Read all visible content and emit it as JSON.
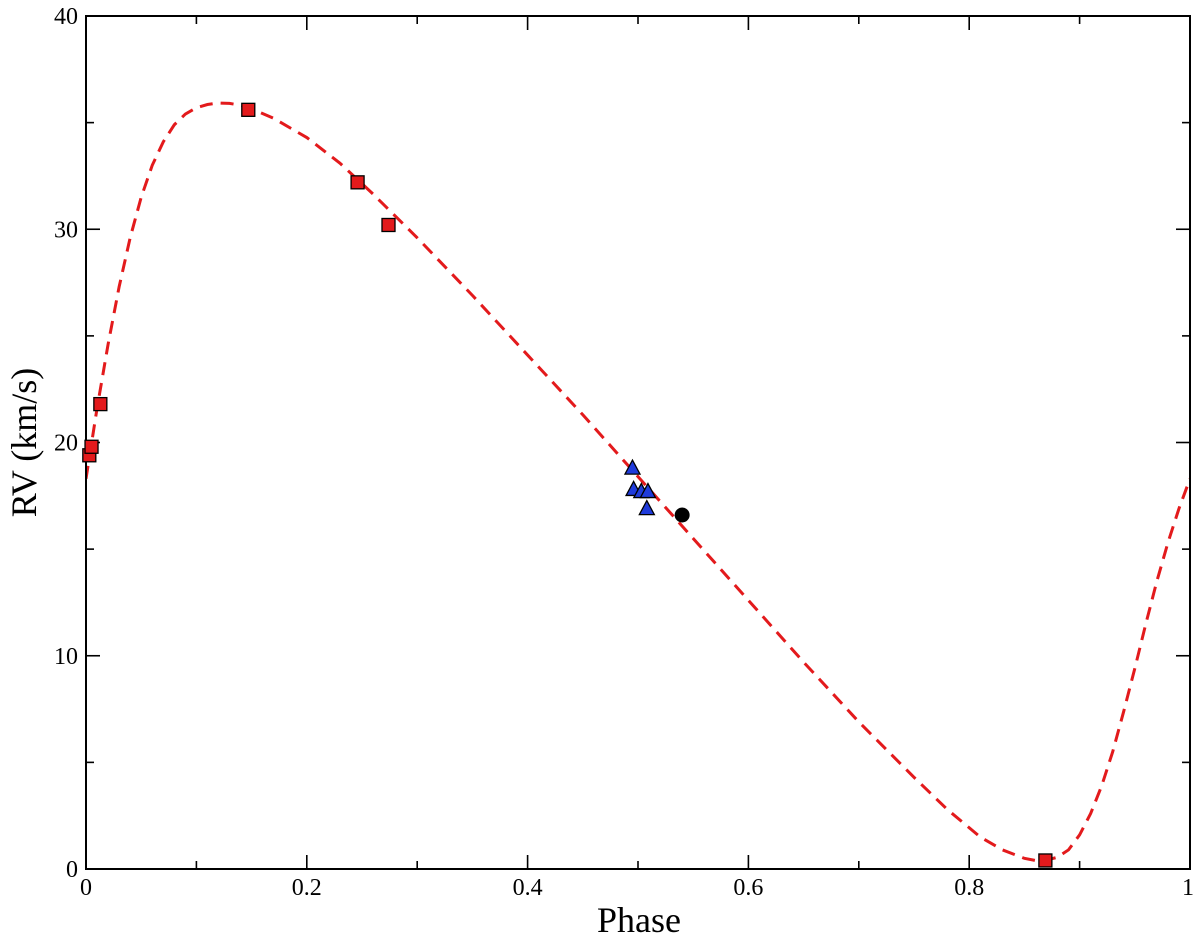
{
  "chart_data": {
    "type": "scatter",
    "title": "",
    "xlabel": "Phase",
    "ylabel": "RV (km/s)",
    "xlim": [
      0,
      1
    ],
    "ylim": [
      0,
      40
    ],
    "x_major_ticks": [
      0,
      0.2,
      0.4,
      0.6,
      0.8,
      1
    ],
    "x_tick_labels": [
      "0",
      "0.2",
      "0.4",
      "0.6",
      "0.8",
      "1"
    ],
    "x_minor_ticks": [
      0.1,
      0.3,
      0.5,
      0.7,
      0.9
    ],
    "y_major_ticks": [
      0,
      10,
      20,
      30,
      40
    ],
    "y_tick_labels": [
      "0",
      "10",
      "20",
      "30",
      "40"
    ],
    "y_minor_ticks": [
      5,
      15,
      25,
      35
    ],
    "grid": false,
    "legend": "none",
    "fit_curve": {
      "style": "dashed",
      "color": "#e31a1c",
      "points": [
        [
          0.0,
          18.3
        ],
        [
          0.01,
          21.6
        ],
        [
          0.02,
          24.6
        ],
        [
          0.03,
          27.3
        ],
        [
          0.04,
          29.6
        ],
        [
          0.05,
          31.5
        ],
        [
          0.06,
          33.0
        ],
        [
          0.07,
          34.1
        ],
        [
          0.08,
          34.9
        ],
        [
          0.09,
          35.4
        ],
        [
          0.1,
          35.7
        ],
        [
          0.11,
          35.85
        ],
        [
          0.12,
          35.92
        ],
        [
          0.13,
          35.9
        ],
        [
          0.14,
          35.82
        ],
        [
          0.15,
          35.65
        ],
        [
          0.17,
          35.2
        ],
        [
          0.2,
          34.3
        ],
        [
          0.23,
          33.1
        ],
        [
          0.26,
          31.65
        ],
        [
          0.3,
          29.6
        ],
        [
          0.35,
          26.9
        ],
        [
          0.4,
          24.1
        ],
        [
          0.45,
          21.3
        ],
        [
          0.5,
          18.4
        ],
        [
          0.55,
          15.5
        ],
        [
          0.6,
          12.6
        ],
        [
          0.65,
          9.7
        ],
        [
          0.7,
          6.9
        ],
        [
          0.75,
          4.3
        ],
        [
          0.78,
          2.8
        ],
        [
          0.81,
          1.5
        ],
        [
          0.83,
          0.9
        ],
        [
          0.85,
          0.5
        ],
        [
          0.86,
          0.4
        ],
        [
          0.87,
          0.42
        ],
        [
          0.88,
          0.55
        ],
        [
          0.89,
          0.9
        ],
        [
          0.9,
          1.6
        ],
        [
          0.91,
          2.6
        ],
        [
          0.92,
          3.9
        ],
        [
          0.93,
          5.5
        ],
        [
          0.94,
          7.4
        ],
        [
          0.95,
          9.4
        ],
        [
          0.96,
          11.5
        ],
        [
          0.97,
          13.5
        ],
        [
          0.98,
          15.3
        ],
        [
          0.99,
          16.9
        ],
        [
          1.0,
          18.3
        ]
      ]
    },
    "series": [
      {
        "marker": "square",
        "color": "#e31a1c",
        "points": [
          [
            0.003,
            19.4
          ],
          [
            0.005,
            19.8
          ],
          [
            0.013,
            21.8
          ],
          [
            0.147,
            35.6
          ],
          [
            0.246,
            32.2
          ],
          [
            0.274,
            30.2
          ],
          [
            0.869,
            0.4
          ]
        ]
      },
      {
        "marker": "triangle",
        "color": "#1f3bdb",
        "points": [
          [
            0.495,
            18.8
          ],
          [
            0.496,
            17.8
          ],
          [
            0.503,
            17.7
          ],
          [
            0.509,
            17.7
          ],
          [
            0.508,
            16.9
          ]
        ]
      },
      {
        "marker": "circle",
        "color": "#000000",
        "points": [
          [
            0.54,
            16.6
          ]
        ]
      }
    ]
  }
}
